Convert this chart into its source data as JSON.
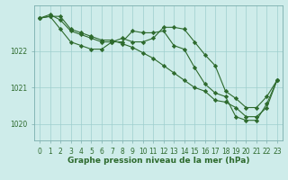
{
  "title": "Graphe pression niveau de la mer (hPa)",
  "xlabel_hours": [
    0,
    1,
    2,
    3,
    4,
    5,
    6,
    7,
    8,
    9,
    10,
    11,
    12,
    13,
    14,
    15,
    16,
    17,
    18,
    19,
    20,
    21,
    22,
    23
  ],
  "line1": [
    1022.9,
    1023.0,
    1022.85,
    1022.55,
    1022.45,
    1022.35,
    1022.25,
    1022.25,
    1022.25,
    1022.55,
    1022.5,
    1022.5,
    1022.55,
    1022.15,
    1022.05,
    1021.55,
    1021.1,
    1020.85,
    1020.75,
    1020.2,
    1020.1,
    1020.1,
    1020.55,
    1021.2
  ],
  "line2": [
    1022.9,
    1022.95,
    1022.6,
    1022.25,
    1022.15,
    1022.05,
    1022.05,
    1022.25,
    1022.35,
    1022.25,
    1022.25,
    1022.35,
    1022.65,
    1022.65,
    1022.6,
    1022.25,
    1021.9,
    1021.6,
    1020.9,
    1020.7,
    1020.45,
    1020.45,
    1020.75,
    1021.2
  ],
  "line3": [
    1022.9,
    1022.95,
    1022.95,
    1022.6,
    1022.5,
    1022.4,
    1022.3,
    1022.3,
    1022.2,
    1022.1,
    1021.95,
    1021.8,
    1021.6,
    1021.4,
    1021.2,
    1021.0,
    1020.9,
    1020.65,
    1020.6,
    1020.45,
    1020.2,
    1020.2,
    1020.45,
    1021.2
  ],
  "line_color": "#2d6a2d",
  "bg_color": "#ceecea",
  "grid_color": "#9ecece",
  "ylim": [
    1019.55,
    1023.25
  ],
  "yticks": [
    1020,
    1021,
    1022
  ],
  "xticks": [
    0,
    1,
    2,
    3,
    4,
    5,
    6,
    7,
    8,
    9,
    10,
    11,
    12,
    13,
    14,
    15,
    16,
    17,
    18,
    19,
    20,
    21,
    22,
    23
  ],
  "marker": "D",
  "marker_size": 2.2,
  "line_width": 0.8,
  "tick_fontsize": 5.5,
  "label_fontsize": 6.5,
  "figsize": [
    3.2,
    2.0
  ],
  "dpi": 100
}
